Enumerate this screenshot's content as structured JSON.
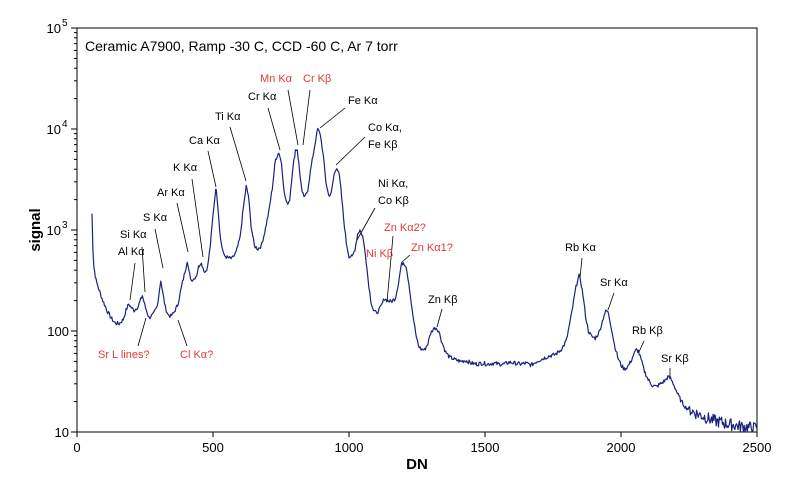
{
  "chart_data": {
    "type": "line",
    "title": "Ceramic A7900, Ramp -30 C, CCD -60 C, Ar 7 torr",
    "xlabel": "DN",
    "ylabel": "signal",
    "xlim": [
      0,
      2500
    ],
    "ylim": [
      10,
      100000
    ],
    "yscale": "log",
    "x_ticks": [
      0,
      500,
      1000,
      1500,
      2000,
      2500
    ],
    "y_ticks": [
      {
        "value": 10,
        "base": "10",
        "exp": ""
      },
      {
        "value": 100,
        "base": "100",
        "exp": ""
      },
      {
        "value": 1000,
        "base": "10",
        "exp": "3"
      },
      {
        "value": 10000,
        "base": "10",
        "exp": "4"
      },
      {
        "value": 100000,
        "base": "10",
        "exp": "5"
      }
    ],
    "grid": false,
    "line_color": "#1a237e",
    "series": [
      {
        "name": "",
        "points": [
          [
            55,
            1450
          ],
          [
            58,
            700
          ],
          [
            62,
            430
          ],
          [
            70,
            320
          ],
          [
            80,
            260
          ],
          [
            95,
            200
          ],
          [
            110,
            160
          ],
          [
            125,
            135
          ],
          [
            140,
            120
          ],
          [
            155,
            118
          ],
          [
            170,
            130
          ],
          [
            180,
            160
          ],
          [
            190,
            185
          ],
          [
            200,
            170
          ],
          [
            210,
            160
          ],
          [
            225,
            175
          ],
          [
            240,
            225
          ],
          [
            252,
            170
          ],
          [
            265,
            135
          ],
          [
            280,
            145
          ],
          [
            295,
            175
          ],
          [
            308,
            320
          ],
          [
            315,
            240
          ],
          [
            325,
            170
          ],
          [
            335,
            145
          ],
          [
            345,
            140
          ],
          [
            355,
            150
          ],
          [
            370,
            180
          ],
          [
            385,
            280
          ],
          [
            400,
            420
          ],
          [
            405,
            500
          ],
          [
            412,
            380
          ],
          [
            420,
            320
          ],
          [
            430,
            330
          ],
          [
            440,
            360
          ],
          [
            447,
            430
          ],
          [
            455,
            480
          ],
          [
            460,
            450
          ],
          [
            470,
            380
          ],
          [
            480,
            430
          ],
          [
            490,
            700
          ],
          [
            500,
            1400
          ],
          [
            508,
            2300
          ],
          [
            512,
            2600
          ],
          [
            518,
            1700
          ],
          [
            528,
            800
          ],
          [
            540,
            560
          ],
          [
            555,
            530
          ],
          [
            570,
            520
          ],
          [
            585,
            600
          ],
          [
            600,
            850
          ],
          [
            612,
            1700
          ],
          [
            622,
            2700
          ],
          [
            630,
            2200
          ],
          [
            640,
            1100
          ],
          [
            652,
            700
          ],
          [
            665,
            650
          ],
          [
            678,
            700
          ],
          [
            690,
            950
          ],
          [
            705,
            1500
          ],
          [
            718,
            2600
          ],
          [
            730,
            5000
          ],
          [
            742,
            5900
          ],
          [
            752,
            4600
          ],
          [
            762,
            2300
          ],
          [
            772,
            1800
          ],
          [
            782,
            2000
          ],
          [
            792,
            3800
          ],
          [
            803,
            6200
          ],
          [
            810,
            6300
          ],
          [
            818,
            3900
          ],
          [
            828,
            2300
          ],
          [
            838,
            2100
          ],
          [
            848,
            2500
          ],
          [
            858,
            3800
          ],
          [
            868,
            5500
          ],
          [
            878,
            8000
          ],
          [
            885,
            10000
          ],
          [
            895,
            8800
          ],
          [
            905,
            5500
          ],
          [
            915,
            3000
          ],
          [
            925,
            2200
          ],
          [
            935,
            2300
          ],
          [
            945,
            3500
          ],
          [
            955,
            4200
          ],
          [
            962,
            3800
          ],
          [
            970,
            2600
          ],
          [
            980,
            1300
          ],
          [
            990,
            750
          ],
          [
            1000,
            550
          ],
          [
            1012,
            540
          ],
          [
            1022,
            650
          ],
          [
            1032,
            920
          ],
          [
            1040,
            1000
          ],
          [
            1050,
            870
          ],
          [
            1060,
            600
          ],
          [
            1070,
            330
          ],
          [
            1080,
            200
          ],
          [
            1090,
            160
          ],
          [
            1100,
            150
          ],
          [
            1110,
            160
          ],
          [
            1120,
            180
          ],
          [
            1130,
            210
          ],
          [
            1142,
            200
          ],
          [
            1155,
            195
          ],
          [
            1170,
            210
          ],
          [
            1182,
            300
          ],
          [
            1192,
            450
          ],
          [
            1200,
            480
          ],
          [
            1210,
            440
          ],
          [
            1220,
            300
          ],
          [
            1232,
            160
          ],
          [
            1245,
            95
          ],
          [
            1255,
            72
          ],
          [
            1265,
            66
          ],
          [
            1278,
            65
          ],
          [
            1290,
            75
          ],
          [
            1300,
            95
          ],
          [
            1310,
            105
          ],
          [
            1320,
            108
          ],
          [
            1330,
            100
          ],
          [
            1340,
            80
          ],
          [
            1355,
            62
          ],
          [
            1370,
            55
          ],
          [
            1390,
            52
          ],
          [
            1410,
            50
          ],
          [
            1430,
            51
          ],
          [
            1450,
            48
          ],
          [
            1470,
            47
          ],
          [
            1490,
            48
          ],
          [
            1510,
            47
          ],
          [
            1530,
            48
          ],
          [
            1550,
            47
          ],
          [
            1570,
            47
          ],
          [
            1590,
            49
          ],
          [
            1610,
            48
          ],
          [
            1630,
            47
          ],
          [
            1650,
            48
          ],
          [
            1670,
            46
          ],
          [
            1690,
            50
          ],
          [
            1710,
            53
          ],
          [
            1725,
            55
          ],
          [
            1740,
            57
          ],
          [
            1755,
            58
          ],
          [
            1770,
            62
          ],
          [
            1785,
            68
          ],
          [
            1800,
            82
          ],
          [
            1812,
            120
          ],
          [
            1822,
            170
          ],
          [
            1832,
            250
          ],
          [
            1840,
            320
          ],
          [
            1846,
            350
          ],
          [
            1852,
            310
          ],
          [
            1860,
            230
          ],
          [
            1870,
            140
          ],
          [
            1880,
            100
          ],
          [
            1892,
            88
          ],
          [
            1905,
            85
          ],
          [
            1918,
            95
          ],
          [
            1928,
            115
          ],
          [
            1938,
            145
          ],
          [
            1946,
            160
          ],
          [
            1954,
            150
          ],
          [
            1964,
            110
          ],
          [
            1975,
            75
          ],
          [
            1988,
            55
          ],
          [
            2000,
            46
          ],
          [
            2012,
            42
          ],
          [
            2024,
            44
          ],
          [
            2036,
            50
          ],
          [
            2046,
            58
          ],
          [
            2056,
            65
          ],
          [
            2064,
            63
          ],
          [
            2074,
            52
          ],
          [
            2086,
            40
          ],
          [
            2100,
            33
          ],
          [
            2115,
            29
          ],
          [
            2130,
            28
          ],
          [
            2145,
            30
          ],
          [
            2160,
            32
          ],
          [
            2172,
            35
          ],
          [
            2182,
            34
          ],
          [
            2195,
            29
          ],
          [
            2208,
            24
          ],
          [
            2222,
            20
          ],
          [
            2238,
            17.5
          ],
          [
            2255,
            16.5
          ],
          [
            2272,
            15.5
          ],
          [
            2290,
            14.8
          ],
          [
            2310,
            14
          ],
          [
            2330,
            13.3
          ],
          [
            2350,
            12.8
          ],
          [
            2370,
            12.5
          ],
          [
            2390,
            12
          ],
          [
            2410,
            11.8
          ],
          [
            2430,
            11.5
          ],
          [
            2450,
            11.3
          ],
          [
            2470,
            11.1
          ],
          [
            2488,
            11
          ],
          [
            2498,
            11
          ]
        ]
      }
    ],
    "annotations": [
      {
        "text": "Al Kα",
        "color": "#000000",
        "x": 118,
        "y": 255,
        "anchor": "start",
        "line": [
          135,
          263,
          130,
          300
        ]
      },
      {
        "text": "Si Kα",
        "color": "#000000",
        "x": 120,
        "y": 238,
        "anchor": "start",
        "line": [
          142,
          247,
          145,
          292
        ]
      },
      {
        "text": "S Kα",
        "color": "#000000",
        "x": 143,
        "y": 221,
        "anchor": "start",
        "line": [
          155,
          229,
          163,
          268
        ]
      },
      {
        "text": "Ar Kα",
        "color": "#000000",
        "x": 157,
        "y": 196,
        "anchor": "start",
        "line": [
          177,
          203,
          188,
          252
        ]
      },
      {
        "text": "K Kα",
        "color": "#000000",
        "x": 173,
        "y": 171,
        "anchor": "start",
        "line": [
          192,
          179,
          203,
          257
        ]
      },
      {
        "text": "Ca Kα",
        "color": "#000000",
        "x": 189,
        "y": 144,
        "anchor": "start",
        "line": [
          208,
          151,
          216,
          187
        ]
      },
      {
        "text": "Ti Kα",
        "color": "#000000",
        "x": 215,
        "y": 120,
        "anchor": "start",
        "line": [
          230,
          127,
          246,
          181
        ]
      },
      {
        "text": "Cr Kα",
        "color": "#000000",
        "x": 248,
        "y": 100,
        "anchor": "start",
        "line": [
          268,
          108,
          280,
          150
        ]
      },
      {
        "text": "Mn Kα",
        "color": "#e53935",
        "x": 260,
        "y": 82,
        "anchor": "start",
        "line": [
          288,
          90,
          298,
          145
        ]
      },
      {
        "text": "Cr Kβ",
        "color": "#e53935",
        "x": 303,
        "y": 82,
        "anchor": "start",
        "line": [
          310,
          90,
          303,
          145
        ]
      },
      {
        "text": "Fe Kα",
        "color": "#000000",
        "x": 348,
        "y": 104,
        "anchor": "start",
        "line": [
          345,
          108,
          320,
          128
        ]
      },
      {
        "text": "Co Kα,",
        "color": "#000000",
        "x": 368,
        "y": 131,
        "anchor": "start"
      },
      {
        "text": "Fe Kβ",
        "color": "#000000",
        "x": 368,
        "y": 148,
        "anchor": "start",
        "line": [
          365,
          137,
          336,
          165
        ]
      },
      {
        "text": "Ni Kα,",
        "color": "#000000",
        "x": 378,
        "y": 187,
        "anchor": "start"
      },
      {
        "text": "Co Kβ",
        "color": "#000000",
        "x": 378,
        "y": 204,
        "anchor": "start",
        "line": [
          375,
          208,
          357,
          240
        ]
      },
      {
        "text": "Zn Kα2?",
        "color": "#e53935",
        "x": 384,
        "y": 231,
        "anchor": "start",
        "line": [
          393,
          236,
          387,
          302
        ]
      },
      {
        "text": "Zn Kα1?",
        "color": "#e53935",
        "x": 411,
        "y": 251,
        "anchor": "start",
        "line": [
          410,
          255,
          402,
          262
        ]
      },
      {
        "text": "Ni Kβ",
        "color": "#e53935",
        "x": 366,
        "y": 257,
        "anchor": "start"
      },
      {
        "text": "Zn Kβ",
        "color": "#000000",
        "x": 428,
        "y": 303,
        "anchor": "start",
        "line": [
          442,
          309,
          437,
          327
        ]
      },
      {
        "text": "Rb Kα",
        "color": "#000000",
        "x": 565,
        "y": 251,
        "anchor": "start",
        "line": [
          582,
          258,
          580,
          278
        ]
      },
      {
        "text": "Sr Kα",
        "color": "#000000",
        "x": 600,
        "y": 286,
        "anchor": "start",
        "line": [
          614,
          293,
          608,
          310
        ]
      },
      {
        "text": "Rb Kβ",
        "color": "#000000",
        "x": 632,
        "y": 334,
        "anchor": "start",
        "line": [
          644,
          341,
          639,
          352
        ]
      },
      {
        "text": "Sr Kβ",
        "color": "#000000",
        "x": 661,
        "y": 362,
        "anchor": "start",
        "line": [
          670,
          368,
          670,
          377
        ]
      },
      {
        "text": "Sr L lines?",
        "color": "#e53935",
        "x": 98,
        "y": 358,
        "anchor": "start",
        "line": [
          138,
          346,
          146,
          318
        ]
      },
      {
        "text": "Cl Kα?",
        "color": "#e53935",
        "x": 180,
        "y": 358,
        "anchor": "start",
        "line": [
          187,
          346,
          178,
          320
        ]
      }
    ]
  }
}
